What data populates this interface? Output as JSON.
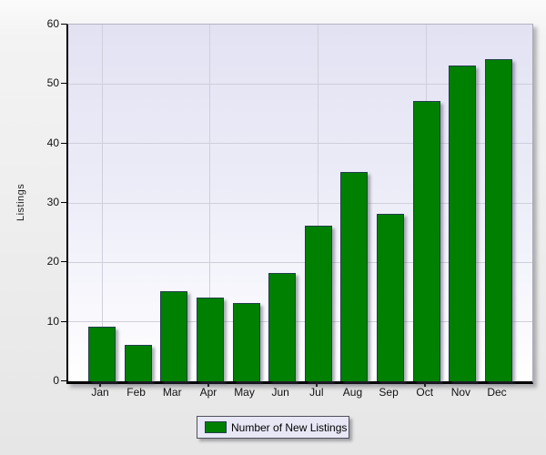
{
  "chart_data": {
    "type": "bar",
    "title": "",
    "xlabel": "",
    "ylabel": "Listings",
    "categories": [
      "Jan",
      "Feb",
      "Mar",
      "Apr",
      "May",
      "Jun",
      "Jul",
      "Aug",
      "Sep",
      "Oct",
      "Nov",
      "Dec"
    ],
    "values": [
      9,
      6,
      15,
      14,
      13,
      18,
      26,
      35,
      28,
      47,
      53,
      54
    ],
    "series_name": "Number of New Listings",
    "ylim": [
      0,
      60
    ],
    "ytick_interval": 10,
    "grid": "on",
    "x_grid_indices": [
      0,
      3,
      6,
      9
    ],
    "legend_position": "bottom-center",
    "colors": {
      "bar_fill": "#008000",
      "bar_border": "#20404c",
      "plot_bg_top": "#e2e2f3",
      "plot_bg_bottom": "#ffffff",
      "gridline": "#cfcfdc",
      "axis_line": "#000000",
      "legend_bg": "#e7e7f6"
    }
  },
  "legend": {
    "label": "Number of New Listings",
    "swatch_color": "#008000"
  }
}
